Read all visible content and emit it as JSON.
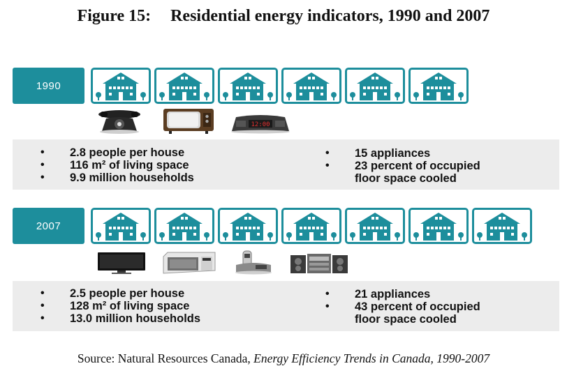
{
  "figure": {
    "number": "Figure 15:",
    "title": "Residential energy indicators, 1990 and 2007"
  },
  "colors": {
    "accent": "#1d8e9c",
    "panel": "#ececec"
  },
  "rows": [
    {
      "year": "1990",
      "house_count": 6,
      "appliance_icons": [
        "telephone-icon",
        "television-icon",
        "clock-radio-icon"
      ],
      "left_stats": [
        "2.8 people per house",
        "116 m² of living space",
        "9.9 million households"
      ],
      "right_stats": [
        "15 appliances",
        "23 percent of occupied",
        "floor space cooled"
      ]
    },
    {
      "year": "2007",
      "house_count": 7,
      "appliance_icons": [
        "flat-tv-icon",
        "microwave-icon",
        "cordless-phone-icon",
        "stereo-icon"
      ],
      "left_stats": [
        "2.5 people per house",
        "128 m² of living space",
        "13.0 million households"
      ],
      "right_stats": [
        "21 appliances",
        "43 percent of occupied",
        "floor space cooled"
      ]
    }
  ],
  "source": {
    "prefix": "Source: Natural Resources Canada, ",
    "publication": "Energy Efficiency Trends in Canada, 1990-2007"
  }
}
